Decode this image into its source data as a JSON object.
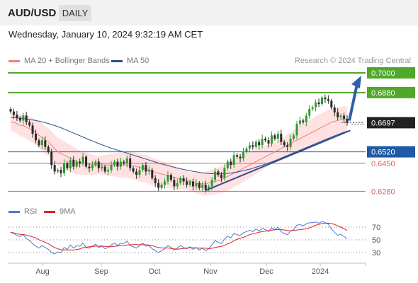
{
  "header": {
    "symbol": "AUD/USD",
    "timeframe": "DAILY"
  },
  "datetime": "Wednesday, January 10, 2024 9:32:19 AM CET",
  "legend": {
    "ma20": {
      "label": "MA 20 + Bollinger Bands",
      "color": "#f08080"
    },
    "ma50": {
      "label": "MA 50",
      "color": "#2b4f8a"
    },
    "credit": "Research © 2024 Trading Central"
  },
  "indicator_legend": {
    "rsi": {
      "label": "RSI",
      "color": "#4a78d6"
    },
    "ma9": {
      "label": "9MA",
      "color": "#e02020"
    }
  },
  "levels": [
    {
      "value": 0.7,
      "label": "0.7000",
      "kind": "resistance",
      "color": "#4fa82a"
    },
    {
      "value": 0.688,
      "label": "0.6880",
      "kind": "resistance",
      "color": "#4fa82a"
    },
    {
      "value": 0.6697,
      "label": "0.6697",
      "kind": "current",
      "color": "#222222"
    },
    {
      "value": 0.652,
      "label": "0.6520",
      "kind": "pivot",
      "color": "#1f5aa6"
    },
    {
      "value": 0.645,
      "label": "0.6450",
      "kind": "support",
      "color": "#e06060"
    },
    {
      "value": 0.628,
      "label": "0.6280",
      "kind": "support",
      "color": "#e06060"
    }
  ],
  "rsi_levels": [
    "70",
    "50",
    "30"
  ],
  "x_axis": [
    "Aug",
    "Sep",
    "Oct",
    "Nov",
    "Dec",
    "2024"
  ],
  "chart_data": {
    "type": "candlestick",
    "title": "",
    "price_range": [
      0.623,
      0.703
    ],
    "rsi_range": [
      20,
      80
    ],
    "closes": [
      0.6765,
      0.6745,
      0.6725,
      0.671,
      0.674,
      0.67,
      0.668,
      0.663,
      0.659,
      0.656,
      0.659,
      0.655,
      0.652,
      0.644,
      0.64,
      0.641,
      0.639,
      0.645,
      0.642,
      0.647,
      0.643,
      0.646,
      0.645,
      0.649,
      0.643,
      0.642,
      0.644,
      0.646,
      0.642,
      0.643,
      0.64,
      0.641,
      0.644,
      0.646,
      0.643,
      0.646,
      0.645,
      0.648,
      0.642,
      0.64,
      0.638,
      0.641,
      0.644,
      0.64,
      0.641,
      0.636,
      0.633,
      0.63,
      0.632,
      0.634,
      0.638,
      0.635,
      0.631,
      0.633,
      0.636,
      0.634,
      0.632,
      0.634,
      0.631,
      0.633,
      0.63,
      0.632,
      0.629,
      0.631,
      0.635,
      0.64,
      0.638,
      0.636,
      0.642,
      0.646,
      0.644,
      0.65,
      0.649,
      0.648,
      0.652,
      0.654,
      0.656,
      0.655,
      0.658,
      0.656,
      0.66,
      0.659,
      0.657,
      0.662,
      0.66,
      0.663,
      0.658,
      0.656,
      0.655,
      0.66,
      0.662,
      0.669,
      0.671,
      0.67,
      0.674,
      0.678,
      0.679,
      0.682,
      0.681,
      0.685,
      0.684,
      0.683,
      0.679,
      0.676,
      0.673,
      0.674,
      0.672,
      0.6697
    ],
    "ma20": [
      0.67,
      0.67,
      0.669,
      0.668,
      0.668,
      0.667,
      0.666,
      0.665,
      0.664,
      0.662,
      0.661,
      0.659,
      0.658,
      0.656,
      0.654,
      0.652,
      0.651,
      0.65,
      0.649,
      0.648,
      0.647,
      0.646,
      0.6455,
      0.645,
      0.645,
      0.6445,
      0.644,
      0.644,
      0.644,
      0.644,
      0.644,
      0.644,
      0.644,
      0.644,
      0.644,
      0.644,
      0.644,
      0.644,
      0.644,
      0.6435,
      0.643,
      0.6425,
      0.642,
      0.6415,
      0.641,
      0.64,
      0.6395,
      0.639,
      0.6385,
      0.638,
      0.6375,
      0.637,
      0.6365,
      0.636,
      0.6355,
      0.635,
      0.6345,
      0.634,
      0.6335,
      0.633,
      0.6325,
      0.6325,
      0.6325,
      0.633,
      0.6335,
      0.634,
      0.6345,
      0.635,
      0.636,
      0.637,
      0.638,
      0.639,
      0.64,
      0.641,
      0.642,
      0.643,
      0.644,
      0.645,
      0.646,
      0.647,
      0.648,
      0.649,
      0.65,
      0.651,
      0.652,
      0.653,
      0.654,
      0.655,
      0.656,
      0.657,
      0.658,
      0.659,
      0.66,
      0.661,
      0.662,
      0.663,
      0.664,
      0.665,
      0.666,
      0.667,
      0.668,
      0.669,
      0.67,
      0.6705,
      0.671,
      0.6715,
      0.672,
      0.672
    ],
    "ma50": [
      0.673,
      0.6728,
      0.6726,
      0.6724,
      0.6722,
      0.672,
      0.6717,
      0.6714,
      0.671,
      0.6706,
      0.6702,
      0.6697,
      0.6692,
      0.6686,
      0.668,
      0.6673,
      0.6666,
      0.6658,
      0.665,
      0.6642,
      0.6634,
      0.6626,
      0.6618,
      0.661,
      0.6602,
      0.6594,
      0.6586,
      0.6578,
      0.657,
      0.6563,
      0.6556,
      0.6549,
      0.6542,
      0.6536,
      0.653,
      0.6524,
      0.6518,
      0.6512,
      0.6506,
      0.65,
      0.6494,
      0.6488,
      0.6482,
      0.6476,
      0.647,
      0.6464,
      0.6458,
      0.6452,
      0.6446,
      0.6441,
      0.6436,
      0.6431,
      0.6426,
      0.6421,
      0.6417,
      0.6413,
      0.6409,
      0.6405,
      0.6401,
      0.6398,
      0.6395,
      0.6392,
      0.639,
      0.6388,
      0.6387,
      0.6386,
      0.6386,
      0.6386,
      0.6387,
      0.6389,
      0.6391,
      0.6394,
      0.6397,
      0.6401,
      0.6405,
      0.641,
      0.6415,
      0.642,
      0.6426,
      0.6432,
      0.6438,
      0.6445,
      0.6452,
      0.6459,
      0.6466,
      0.6474,
      0.6482,
      0.649,
      0.6498,
      0.6506,
      0.6514,
      0.6522,
      0.653,
      0.6538,
      0.6546,
      0.6554,
      0.6562,
      0.657,
      0.6578,
      0.6586,
      0.6594,
      0.6602,
      0.661,
      0.6618,
      0.6625,
      0.6632,
      0.6639,
      0.6645
    ],
    "rsi": [
      62,
      60,
      57,
      55,
      58,
      52,
      49,
      44,
      40,
      37,
      41,
      38,
      35,
      30,
      28,
      31,
      30,
      38,
      35,
      42,
      37,
      41,
      40,
      45,
      38,
      37,
      40,
      43,
      38,
      40,
      36,
      38,
      42,
      45,
      41,
      45,
      44,
      48,
      41,
      39,
      37,
      41,
      45,
      40,
      41,
      36,
      33,
      30,
      33,
      36,
      41,
      38,
      34,
      37,
      41,
      38,
      36,
      39,
      35,
      38,
      34,
      37,
      33,
      36,
      42,
      49,
      46,
      44,
      51,
      56,
      53,
      60,
      58,
      57,
      61,
      63,
      65,
      63,
      67,
      64,
      68,
      66,
      63,
      69,
      66,
      70,
      63,
      60,
      58,
      64,
      66,
      73,
      74,
      72,
      75,
      77,
      77,
      78,
      76,
      79,
      77,
      75,
      67,
      62,
      57,
      59,
      55,
      52
    ],
    "trendline": {
      "from": [
        62,
        0.6285
      ],
      "to": [
        108,
        0.665
      ]
    },
    "arrow_target": 0.7
  }
}
